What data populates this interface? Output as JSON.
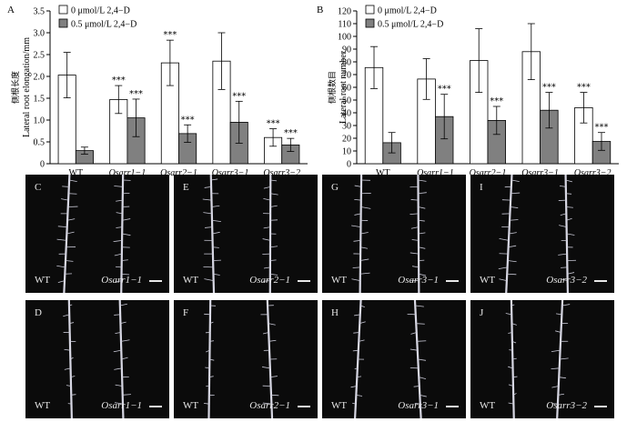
{
  "chart_data": [
    {
      "panel_label": "A",
      "type": "bar",
      "ylabel_cn": "侧根长度",
      "ylabel": "Lateral root elongation/mm",
      "ylim": [
        0,
        3.5
      ],
      "yticks": [
        0,
        0.5,
        1.0,
        1.5,
        2.0,
        2.5,
        3.0,
        3.5
      ],
      "ytick_labels": [
        "0",
        "0.5",
        "1.0",
        "1.5",
        "2.0",
        "2.5",
        "3.0",
        "3.5"
      ],
      "categories": [
        "WT",
        "Osarr1−1",
        "Osarr2−1",
        "Osarr3−1",
        "Osarr3−2"
      ],
      "legend_position": "top-left",
      "series": [
        {
          "name": "0 μmol/L 2,4−D",
          "color": "#ffffff",
          "values": [
            2.03,
            1.47,
            2.31,
            2.35,
            0.6
          ],
          "errors": [
            0.52,
            0.32,
            0.52,
            0.65,
            0.2
          ],
          "sig": [
            "",
            "***",
            "***",
            "",
            "***"
          ]
        },
        {
          "name": "0.5 μmol/L 2,4−D",
          "color": "#808080",
          "values": [
            0.3,
            1.05,
            0.69,
            0.95,
            0.43
          ],
          "errors": [
            0.08,
            0.43,
            0.2,
            0.48,
            0.15
          ],
          "sig": [
            "",
            "***",
            "***",
            "***",
            "***"
          ]
        }
      ]
    },
    {
      "panel_label": "B",
      "type": "bar",
      "ylabel_cn": "侧根数目",
      "ylabel": "Lateral root number",
      "ylim": [
        0,
        120
      ],
      "yticks": [
        0,
        10,
        20,
        30,
        40,
        50,
        60,
        70,
        80,
        90,
        100,
        110,
        120
      ],
      "ytick_labels": [
        "0",
        "10",
        "20",
        "30",
        "40",
        "50",
        "60",
        "70",
        "80",
        "90",
        "100",
        "110",
        "120"
      ],
      "categories": [
        "WT",
        "Osarr1−1",
        "Osarr2−1",
        "Osarr3−1",
        "Osarr3−2"
      ],
      "legend_position": "top-left",
      "series": [
        {
          "name": "0 μmol/L 2,4−D",
          "color": "#ffffff",
          "values": [
            75.5,
            66.5,
            81,
            88,
            44
          ],
          "errors": [
            16.5,
            16,
            25,
            22,
            12
          ],
          "sig": [
            "",
            "",
            "",
            "",
            "***"
          ]
        },
        {
          "name": "0.5 μmol/L 2,4−D",
          "color": "#808080",
          "values": [
            16.5,
            37,
            34,
            42,
            17.5
          ],
          "errors": [
            8,
            17.5,
            11,
            14,
            7
          ],
          "sig": [
            "",
            "***",
            "***",
            "***",
            "***"
          ]
        }
      ]
    }
  ],
  "photo_panels": [
    {
      "label": "C",
      "wt": "WT",
      "mutant": "Osarr1−1"
    },
    {
      "label": "E",
      "wt": "WT",
      "mutant": "Osarr2−1"
    },
    {
      "label": "G",
      "wt": "WT",
      "mutant": "Osarr3−1"
    },
    {
      "label": "I",
      "wt": "WT",
      "mutant": "Osarr3−2"
    },
    {
      "label": "D",
      "wt": "WT",
      "mutant": "Osarr1−1"
    },
    {
      "label": "F",
      "wt": "WT",
      "mutant": "Osarr2−1"
    },
    {
      "label": "H",
      "wt": "WT",
      "mutant": "Osarr3−1"
    },
    {
      "label": "J",
      "wt": "WT",
      "mutant": "Osarr3−2"
    }
  ]
}
